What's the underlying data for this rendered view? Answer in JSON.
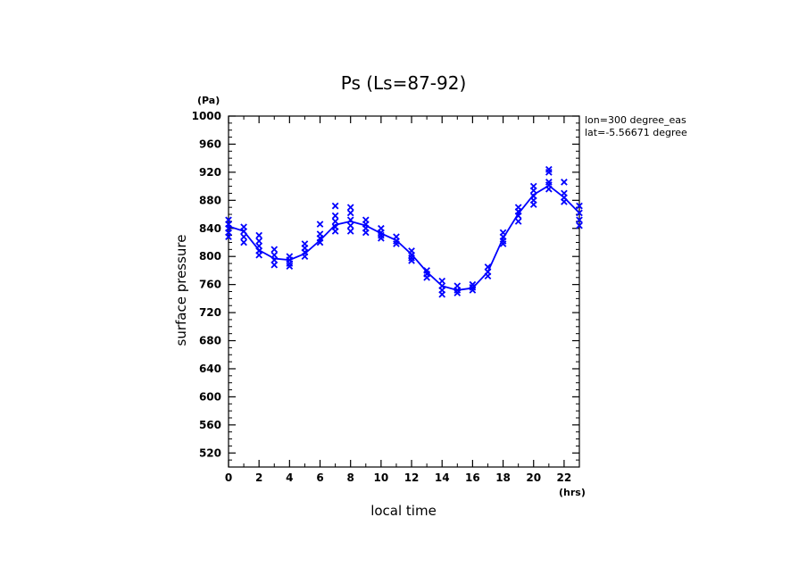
{
  "chart_data": {
    "type": "line",
    "title": "Ps (Ls=87-92)",
    "xlabel": "local time",
    "ylabel": "surface pressure",
    "x_unit": "(hrs)",
    "y_unit": "(Pa)",
    "annotations": [
      "lon=300 degree_eas",
      "lat=-5.56671 degree"
    ],
    "xlim": [
      0,
      23
    ],
    "ylim": [
      500,
      1000
    ],
    "x_ticks": [
      "0",
      "2",
      "4",
      "6",
      "8",
      "10",
      "12",
      "14",
      "16",
      "18",
      "20",
      "22"
    ],
    "y_ticks": [
      "520",
      "560",
      "600",
      "640",
      "680",
      "720",
      "760",
      "800",
      "840",
      "880",
      "920",
      "960",
      "1000"
    ],
    "grid": false,
    "series": [
      {
        "marker": "line",
        "color": "#0000ff",
        "x": [
          0,
          1,
          2,
          3,
          4,
          5,
          6,
          7,
          8,
          9,
          10,
          11,
          12,
          13,
          14,
          15,
          16,
          17,
          18,
          19,
          20,
          21,
          22,
          23
        ],
        "y": [
          843,
          836,
          809,
          797,
          795,
          804,
          823,
          845,
          850,
          844,
          833,
          823,
          803,
          778,
          758,
          752,
          755,
          778,
          826,
          861,
          888,
          901,
          884,
          862
        ]
      },
      {
        "marker": "x",
        "color": "#0000ff",
        "x": [
          0,
          0,
          0,
          0,
          0,
          1,
          1,
          1,
          1,
          2,
          2,
          2,
          2,
          2,
          3,
          3,
          3,
          3,
          4,
          4,
          4,
          4,
          5,
          5,
          5,
          5,
          6,
          6,
          6,
          6,
          7,
          7,
          7,
          7,
          7,
          8,
          8,
          8,
          8,
          8,
          9,
          9,
          9,
          9,
          10,
          10,
          10,
          10,
          11,
          11,
          11,
          12,
          12,
          12,
          12,
          13,
          13,
          13,
          14,
          14,
          14,
          14,
          15,
          15,
          15,
          16,
          16,
          16,
          17,
          17,
          17,
          18,
          18,
          18,
          18,
          19,
          19,
          19,
          19,
          20,
          20,
          20,
          20,
          20,
          21,
          21,
          21,
          21,
          21,
          22,
          22,
          22,
          22,
          23,
          23,
          23,
          23
        ],
        "y": [
          852,
          846,
          840,
          834,
          828,
          842,
          836,
          828,
          820,
          830,
          822,
          815,
          808,
          802,
          810,
          802,
          795,
          788,
          800,
          795,
          790,
          786,
          818,
          812,
          806,
          800,
          846,
          832,
          826,
          820,
          872,
          858,
          850,
          842,
          836,
          870,
          862,
          852,
          844,
          836,
          852,
          846,
          840,
          834,
          840,
          834,
          830,
          826,
          828,
          822,
          818,
          808,
          802,
          798,
          794,
          780,
          775,
          770,
          765,
          758,
          752,
          746,
          758,
          752,
          748,
          760,
          756,
          752,
          785,
          778,
          772,
          834,
          828,
          822,
          818,
          870,
          864,
          858,
          850,
          900,
          894,
          886,
          880,
          874,
          924,
          920,
          906,
          902,
          896,
          906,
          890,
          884,
          878,
          872,
          862,
          852,
          844
        ]
      }
    ]
  }
}
